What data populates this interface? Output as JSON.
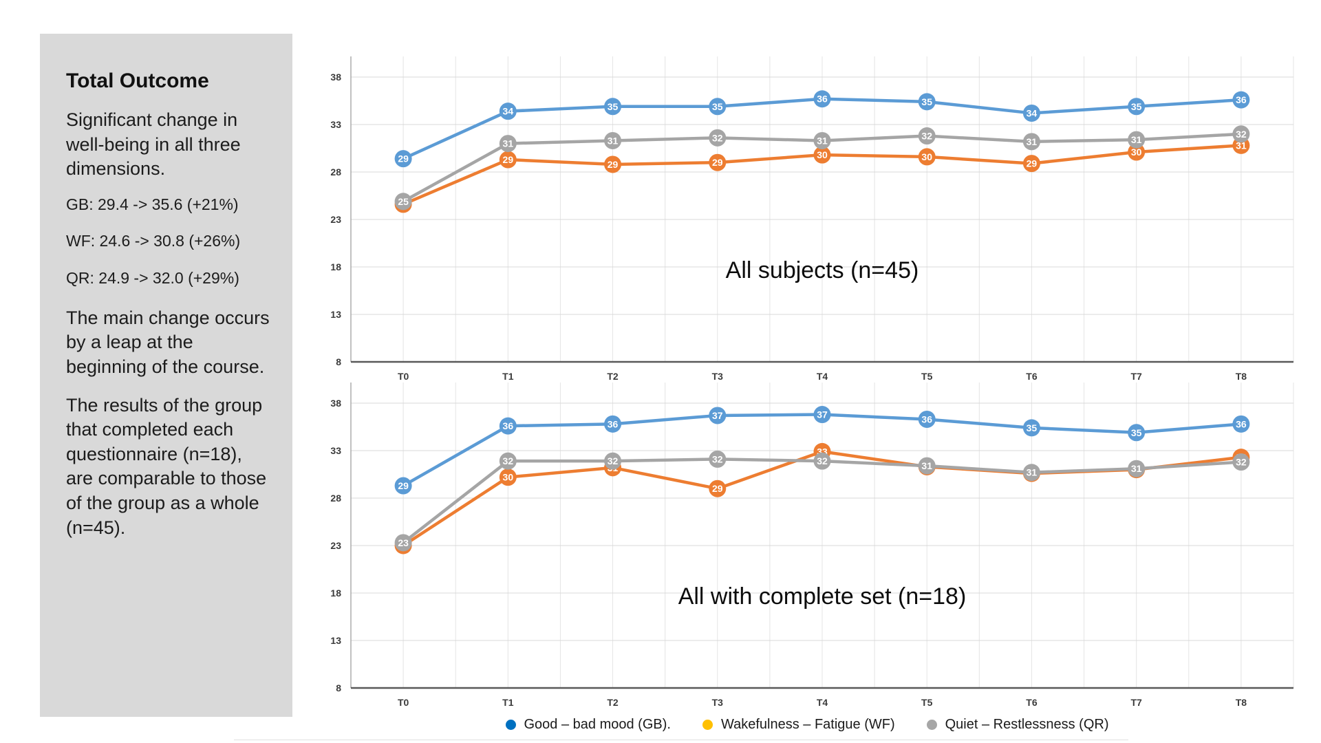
{
  "sidebar": {
    "title": "Total Outcome",
    "paragraph1": "Significant change in well-being in all three dimensions.",
    "stats": [
      "GB: 29.4 -> 35.6 (+21%)",
      "WF: 24.6 -> 30.8 (+26%)",
      "QR: 24.9 -> 32.0 (+29%)"
    ],
    "paragraph2": "The main change occurs by a leap at the beginning of the course.",
    "paragraph3": "The results of the group that completed each questionnaire (n=18), are comparable to those of the group as a whole (n=45)."
  },
  "chart_data": [
    {
      "type": "line",
      "title": "All subjects (n=45)",
      "categories": [
        "T0",
        "T1",
        "T2",
        "T3",
        "T4",
        "T5",
        "T6",
        "T7",
        "T8"
      ],
      "ylim": [
        8,
        38
      ],
      "yticks": [
        8,
        13,
        18,
        23,
        28,
        33,
        38
      ],
      "grid": true,
      "legend_position": "none",
      "series": [
        {
          "name": "Good - bad mood (GB)",
          "color": "#5b9bd5",
          "values": [
            29.4,
            34.4,
            34.9,
            34.9,
            35.7,
            35.4,
            34.2,
            34.9,
            35.6
          ],
          "labels": [
            29,
            34,
            35,
            35,
            36,
            35,
            34,
            35,
            36
          ]
        },
        {
          "name": "Wakefulness - Fatigue (WF)",
          "color": "#ed7d31",
          "values": [
            24.6,
            29.3,
            28.8,
            29.0,
            29.8,
            29.6,
            28.9,
            30.1,
            30.8
          ],
          "labels": [
            25,
            29,
            29,
            29,
            30,
            30,
            29,
            30,
            31
          ]
        },
        {
          "name": "Quiet - Restlessness (QR)",
          "color": "#a5a5a5",
          "values": [
            24.9,
            31.0,
            31.3,
            31.6,
            31.3,
            31.8,
            31.2,
            31.4,
            32.0
          ],
          "labels": [
            25,
            31,
            31,
            32,
            31,
            32,
            31,
            31,
            32
          ]
        }
      ]
    },
    {
      "type": "line",
      "title": "All with complete set (n=18)",
      "categories": [
        "T0",
        "T1",
        "T2",
        "T3",
        "T4",
        "T5",
        "T6",
        "T7",
        "T8"
      ],
      "ylim": [
        8,
        38
      ],
      "yticks": [
        8,
        13,
        18,
        23,
        28,
        33,
        38
      ],
      "grid": true,
      "legend_position": "bottom",
      "series": [
        {
          "name": "Good - bad mood (GB)",
          "color": "#5b9bd5",
          "values": [
            29.3,
            35.6,
            35.8,
            36.7,
            36.8,
            36.3,
            35.4,
            34.9,
            35.8
          ],
          "labels": [
            29,
            36,
            36,
            37,
            37,
            36,
            35,
            35,
            36
          ]
        },
        {
          "name": "Wakefulness - Fatigue (WF)",
          "color": "#ed7d31",
          "values": [
            23.0,
            30.2,
            31.2,
            29.0,
            32.9,
            31.3,
            30.6,
            31.0,
            32.3
          ],
          "labels": [
            23,
            30,
            31,
            29,
            33,
            31,
            31,
            31,
            32
          ]
        },
        {
          "name": "Quiet - Restlessness (QR)",
          "color": "#a5a5a5",
          "values": [
            23.3,
            31.9,
            31.9,
            32.1,
            31.9,
            31.4,
            30.7,
            31.1,
            31.8
          ],
          "labels": [
            23,
            32,
            32,
            32,
            32,
            31,
            31,
            31,
            32
          ]
        }
      ]
    }
  ],
  "legend": {
    "items": [
      {
        "label": "Good – bad mood (GB).",
        "color": "#0070c0"
      },
      {
        "label": "Wakefulness – Fatigue (WF)",
        "color": "#ffc000"
      },
      {
        "label": "Quiet – Restlessness (QR)",
        "color": "#a6a6a6"
      }
    ]
  }
}
